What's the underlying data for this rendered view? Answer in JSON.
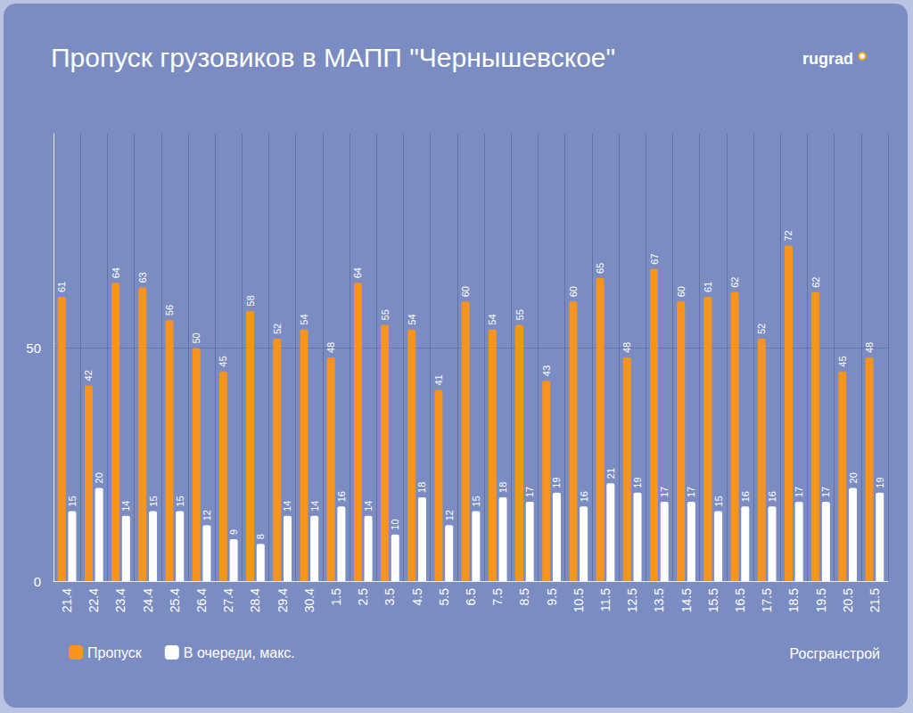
{
  "chart_data": {
    "type": "bar",
    "title": "Пропуск грузовиков в МАПП \"Чернышевское\"",
    "brand": "rugrad",
    "source": "Росгранстрой",
    "categories": [
      "21.4",
      "22.4",
      "23.4",
      "24.4",
      "25.4",
      "26.4",
      "27.4",
      "28.4",
      "29.4",
      "30.4",
      "1.5",
      "2.5",
      "3.5",
      "4.5",
      "5.5",
      "6.5",
      "7.5",
      "8.5",
      "9.5",
      "10.5",
      "11.5",
      "12.5",
      "13.5",
      "14.5",
      "15.5",
      "16.5",
      "17.5",
      "18.5",
      "19.5",
      "20.5",
      "21.5"
    ],
    "series": [
      {
        "name": "Пропуск",
        "color": "#f7941d",
        "values": [
          61,
          42,
          64,
          63,
          56,
          50,
          45,
          58,
          52,
          54,
          48,
          64,
          55,
          54,
          41,
          60,
          54,
          55,
          43,
          60,
          65,
          48,
          67,
          60,
          61,
          62,
          52,
          72,
          62,
          45,
          48
        ]
      },
      {
        "name": "В очереди, макс.",
        "color": "#ffffff",
        "values": [
          15,
          20,
          14,
          15,
          15,
          12,
          9,
          8,
          14,
          14,
          16,
          14,
          10,
          18,
          12,
          15,
          18,
          17,
          19,
          16,
          21,
          19,
          17,
          17,
          15,
          16,
          16,
          17,
          17,
          20,
          19
        ]
      }
    ],
    "ylim": [
      0,
      96
    ],
    "yticks": [
      0,
      50
    ],
    "grid": true,
    "legend": "bottom-left",
    "data_labels": true
  }
}
